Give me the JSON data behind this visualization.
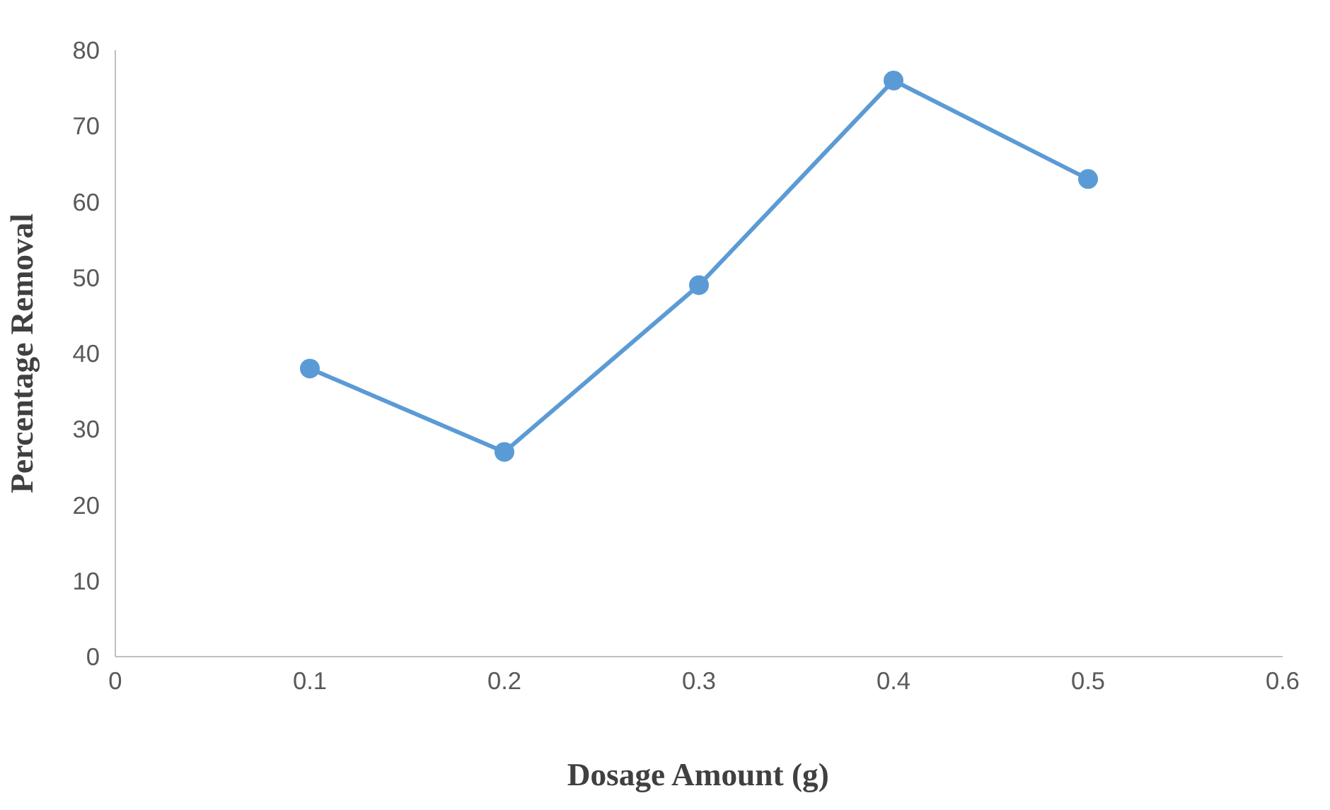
{
  "chart_data": {
    "type": "line",
    "xlabel": "Dosage Amount (g)",
    "ylabel": "Percentage Removal",
    "x": [
      0.1,
      0.2,
      0.3,
      0.4,
      0.5
    ],
    "series": [
      {
        "color": "#5b9bd5",
        "values": [
          38,
          27,
          49,
          76,
          63
        ]
      }
    ],
    "xlim": [
      0,
      0.6
    ],
    "xticks": [
      0,
      0.1,
      0.2,
      0.3,
      0.4,
      0.5,
      0.6
    ],
    "ylim": [
      0,
      80
    ],
    "yticks": [
      0,
      10,
      20,
      30,
      40,
      50,
      60,
      70,
      80
    ],
    "grid": false,
    "marker": "circle",
    "line_style": "solid"
  }
}
